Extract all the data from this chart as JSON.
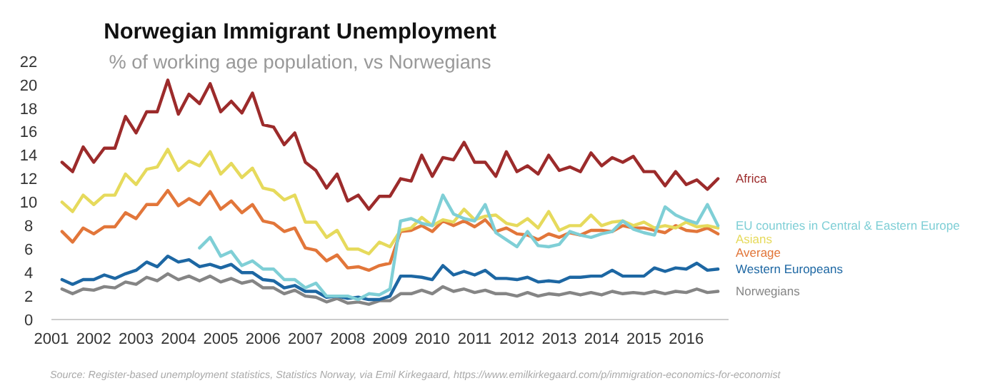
{
  "chart_data": {
    "type": "line",
    "title": "Norwegian Immigrant Unemployment",
    "subtitle": "% of working age population, vs Norwegians",
    "annotations": [
      "Source: Register-based unemployment statistics, Statistics Norway, via Emil Kirkegaard, https://www.emilkirkegaard.com/p/immigration-economics-for-economist"
    ],
    "x": [
      2001.25,
      2001.5,
      2001.75,
      2002,
      2002.25,
      2002.5,
      2002.75,
      2003,
      2003.25,
      2003.5,
      2003.75,
      2004,
      2004.25,
      2004.5,
      2004.75,
      2005,
      2005.25,
      2005.5,
      2005.75,
      2006,
      2006.25,
      2006.5,
      2006.75,
      2007,
      2007.25,
      2007.5,
      2007.75,
      2008,
      2008.25,
      2008.5,
      2008.75,
      2009,
      2009.25,
      2009.5,
      2009.75,
      2010,
      2010.25,
      2010.5,
      2010.75,
      2011,
      2011.25,
      2011.5,
      2011.75,
      2012,
      2012.25,
      2012.5,
      2012.75,
      2013,
      2013.25,
      2013.5,
      2013.75,
      2014,
      2014.25,
      2014.5,
      2014.75,
      2015,
      2015.25,
      2015.5,
      2015.75,
      2016,
      2016.25,
      2016.5,
      2016.75
    ],
    "xlim": [
      2001,
      2017
    ],
    "xticks": [
      2001,
      2002,
      2003,
      2004,
      2005,
      2006,
      2007,
      2008,
      2009,
      2010,
      2011,
      2012,
      2013,
      2014,
      2015,
      2016
    ],
    "ylim": [
      0,
      22
    ],
    "yticks": [
      0,
      2,
      4,
      6,
      8,
      10,
      12,
      14,
      16,
      18,
      20,
      22
    ],
    "grid": false,
    "series": [
      {
        "name": "Africa",
        "color": "#9c2b2b",
        "values": [
          13.4,
          12.6,
          14.7,
          13.4,
          14.6,
          14.6,
          17.3,
          15.9,
          17.7,
          17.7,
          20.4,
          17.5,
          19.2,
          18.4,
          20.1,
          17.7,
          18.6,
          17.6,
          19.3,
          16.6,
          16.4,
          14.9,
          15.9,
          13.4,
          12.7,
          11.2,
          12.4,
          10.1,
          10.6,
          9.4,
          10.5,
          10.5,
          12.0,
          11.8,
          14.0,
          12.2,
          13.8,
          13.6,
          15.1,
          13.4,
          13.4,
          12.2,
          14.3,
          12.6,
          13.1,
          12.4,
          14.0,
          12.7,
          13.0,
          12.6,
          14.2,
          13.1,
          13.8,
          13.4,
          13.9,
          12.6,
          12.6,
          11.4,
          12.6,
          11.5,
          11.9,
          11.1,
          12.0
        ]
      },
      {
        "name": "EU countries in Central & Eastern Europe",
        "color": "#7fcfd6",
        "values": [
          null,
          null,
          null,
          null,
          null,
          null,
          null,
          null,
          null,
          null,
          null,
          null,
          null,
          6.1,
          7.0,
          5.4,
          5.8,
          4.6,
          5.0,
          4.3,
          4.3,
          3.4,
          3.4,
          2.7,
          3.1,
          2.0,
          2.0,
          2.0,
          1.7,
          2.2,
          2.1,
          2.6,
          8.4,
          8.6,
          8.2,
          8.0,
          10.6,
          9.0,
          8.6,
          8.4,
          9.8,
          7.4,
          6.8,
          6.2,
          7.5,
          6.3,
          6.2,
          6.4,
          7.5,
          7.2,
          7.0,
          7.3,
          7.5,
          8.4,
          7.7,
          7.4,
          7.2,
          9.6,
          8.9,
          8.5,
          8.2,
          9.8,
          8.0
        ]
      },
      {
        "name": "Asians",
        "color": "#e6da5c",
        "values": [
          10.0,
          9.2,
          10.6,
          9.8,
          10.6,
          10.6,
          12.4,
          11.5,
          12.8,
          13.0,
          14.5,
          12.7,
          13.5,
          13.1,
          14.3,
          12.4,
          13.3,
          12.1,
          12.9,
          11.2,
          11.0,
          10.2,
          10.6,
          8.3,
          8.3,
          7.0,
          7.6,
          6.0,
          6.0,
          5.6,
          6.6,
          6.2,
          7.6,
          7.8,
          8.7,
          8.0,
          8.5,
          8.3,
          9.4,
          8.5,
          8.8,
          8.9,
          8.2,
          8.0,
          8.6,
          7.8,
          9.2,
          7.6,
          8.0,
          8.0,
          8.9,
          8.0,
          8.3,
          8.4,
          8.0,
          8.3,
          7.8,
          8.0,
          7.8,
          8.3,
          7.9,
          8.0,
          7.8
        ]
      },
      {
        "name": "Average",
        "color": "#e2763a",
        "values": [
          7.5,
          6.6,
          7.8,
          7.3,
          7.9,
          7.9,
          9.1,
          8.6,
          9.8,
          9.8,
          11.0,
          9.7,
          10.3,
          9.8,
          10.9,
          9.4,
          10.1,
          9.1,
          9.8,
          8.4,
          8.2,
          7.5,
          7.8,
          6.1,
          5.9,
          5.0,
          5.5,
          4.4,
          4.5,
          4.2,
          4.6,
          4.8,
          7.5,
          7.6,
          8.0,
          7.5,
          8.4,
          8.0,
          8.4,
          7.9,
          8.5,
          7.5,
          7.8,
          7.3,
          7.2,
          6.8,
          7.3,
          7.0,
          7.4,
          7.2,
          7.6,
          7.6,
          7.5,
          8.0,
          7.8,
          7.8,
          7.6,
          7.4,
          8.0,
          7.6,
          7.5,
          7.8,
          7.3
        ]
      },
      {
        "name": "Western Europeans",
        "color": "#1d67a3",
        "values": [
          3.4,
          3.0,
          3.4,
          3.4,
          3.8,
          3.5,
          3.9,
          4.2,
          4.9,
          4.5,
          5.4,
          4.9,
          5.1,
          4.5,
          4.7,
          4.4,
          4.7,
          4.0,
          4.0,
          3.4,
          3.3,
          2.7,
          2.9,
          2.4,
          2.4,
          1.9,
          2.0,
          1.8,
          1.9,
          1.7,
          1.7,
          2.0,
          3.7,
          3.7,
          3.6,
          3.4,
          4.6,
          3.8,
          4.1,
          3.8,
          4.2,
          3.5,
          3.5,
          3.4,
          3.6,
          3.2,
          3.3,
          3.2,
          3.6,
          3.6,
          3.7,
          3.7,
          4.2,
          3.7,
          3.7,
          3.7,
          4.4,
          4.1,
          4.4,
          4.3,
          4.8,
          4.2,
          4.3
        ]
      },
      {
        "name": "Norwegians",
        "color": "#858585",
        "values": [
          2.6,
          2.2,
          2.6,
          2.5,
          2.8,
          2.7,
          3.2,
          3.0,
          3.6,
          3.3,
          3.9,
          3.4,
          3.7,
          3.3,
          3.7,
          3.2,
          3.5,
          3.1,
          3.3,
          2.7,
          2.7,
          2.2,
          2.5,
          2.0,
          1.9,
          1.5,
          1.8,
          1.4,
          1.5,
          1.3,
          1.6,
          1.6,
          2.2,
          2.2,
          2.5,
          2.2,
          2.8,
          2.4,
          2.6,
          2.3,
          2.5,
          2.2,
          2.2,
          2.0,
          2.3,
          2.0,
          2.2,
          2.1,
          2.3,
          2.1,
          2.3,
          2.1,
          2.4,
          2.2,
          2.3,
          2.2,
          2.4,
          2.2,
          2.4,
          2.3,
          2.6,
          2.3,
          2.4
        ]
      }
    ]
  }
}
